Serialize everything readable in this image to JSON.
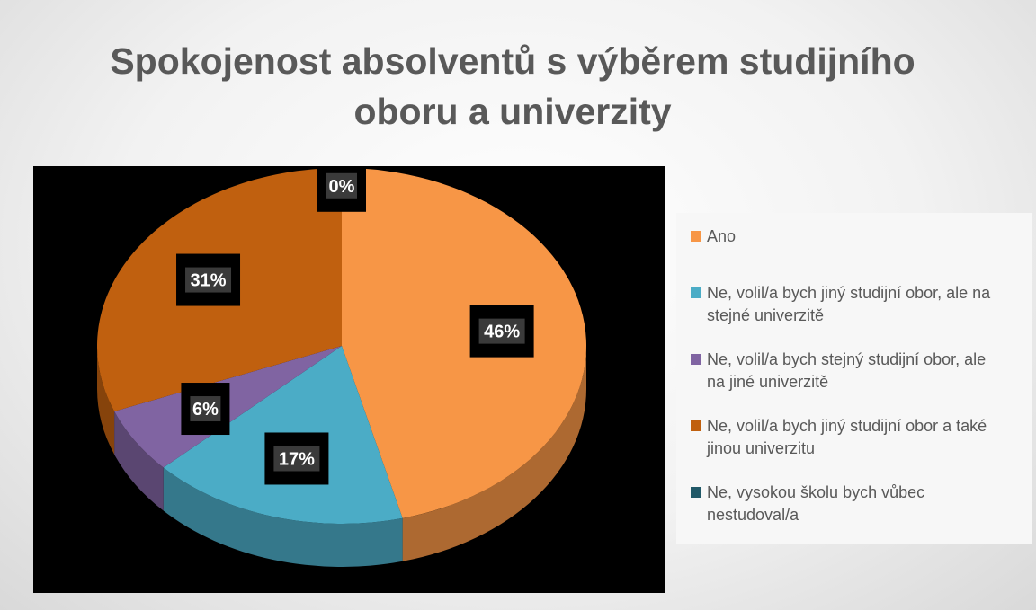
{
  "chart_data": {
    "type": "pie",
    "title": "Spokojenost absolventů s výběrem studijního oboru a univerzity",
    "categories": [
      "Ano",
      "Ne, volil/a bych jiný studijní obor, ale na stejné univerzitě",
      "Ne, volil/a bych stejný studijní obor, ale na jiné univerzitě",
      "Ne, volil/a bych jiný studijní obor a také jinou univerzitu",
      "Ne, vysokou školu bych vůbec nestudoval/a"
    ],
    "values": [
      46,
      17,
      6,
      31,
      0
    ],
    "value_labels": [
      "46%",
      "17%",
      "6%",
      "31%",
      "0%"
    ],
    "colors": [
      "#f79646",
      "#4bacc6",
      "#8064a2",
      "#c0600f",
      "#215968"
    ],
    "legend": "right"
  }
}
